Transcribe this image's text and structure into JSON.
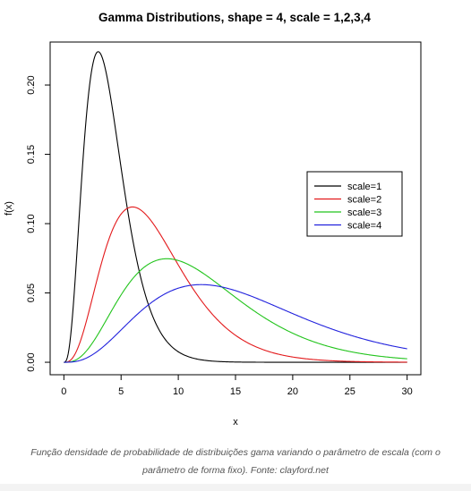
{
  "chart_data": {
    "type": "line",
    "title": "Gamma Distributions, shape = 4, scale = 1,2,3,4",
    "xlabel": "x",
    "ylabel": "f(x)",
    "xlim": [
      -1.2,
      31.2
    ],
    "ylim": [
      -0.009,
      0.231
    ],
    "x_ticks": [
      0,
      5,
      10,
      15,
      20,
      25,
      30
    ],
    "x_tick_labels": [
      "0",
      "5",
      "10",
      "15",
      "20",
      "25",
      "30"
    ],
    "y_ticks": [
      0.0,
      0.05,
      0.1,
      0.15,
      0.2
    ],
    "y_tick_labels": [
      "0.00",
      "0.05",
      "0.10",
      "0.15",
      "0.20"
    ],
    "shape": 4,
    "x_range": [
      0,
      30
    ],
    "legend_position": "right",
    "grid": false,
    "series": [
      {
        "name": "scale=1",
        "scale": 1,
        "color": "#000000",
        "peak": {
          "x": 3,
          "y": 0.224
        }
      },
      {
        "name": "scale=2",
        "scale": 2,
        "color": "#e31a1c",
        "peak": {
          "x": 6,
          "y": 0.112
        }
      },
      {
        "name": "scale=3",
        "scale": 3,
        "color": "#22c41c",
        "peak": {
          "x": 9,
          "y": 0.075
        }
      },
      {
        "name": "scale=4",
        "scale": 4,
        "color": "#2222dd",
        "peak": {
          "x": 12,
          "y": 0.056
        }
      }
    ]
  },
  "caption": {
    "line1": "Função densidade de probabilidade de distribuições gama variando o parâmetro de escala (com o",
    "line2": "parâmetro de forma fixo). Fonte: clayford.net"
  }
}
